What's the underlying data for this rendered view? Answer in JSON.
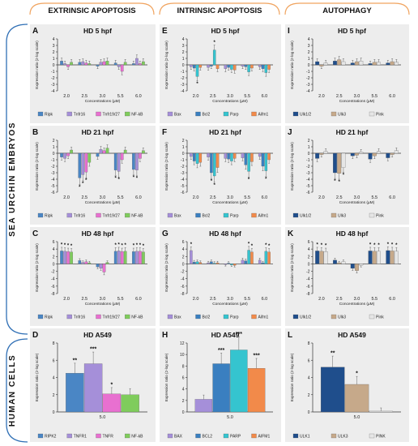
{
  "columns": [
    "EXTRINSIC APOPTOSIS",
    "INTRINSIC APOPTOSIS",
    "AUTOPHAGY"
  ],
  "row_groups": [
    "SEA URCHIN EMBRYOS",
    "HUMAN CELLS"
  ],
  "colors": {
    "header_arc": "#f0a35e",
    "bracket": "#2f6fb5",
    "panel_bg": "#ededed",
    "Ripk": "#4a86c5",
    "Tnfr16": "#a58fd9",
    "Tnfr19/27": "#e870d0",
    "NF-kB": "#7fcc5c",
    "Bax": "#a58fd9",
    "Bcl2": "#3a7fc0",
    "Parp": "#35c4cf",
    "Aifm1": "#f28a4a",
    "Ulk1/2": "#1f4e8c",
    "Ulk3": "#c6a98a",
    "Pink": "#e6e6e6"
  },
  "chart_data": [
    {
      "type": "bar",
      "panel": "A",
      "title": "HD 5 hpf",
      "ylabel": "Expression ratio (2-log scale)",
      "xlabel": "Concentrations (µM)",
      "ylim": [
        -4,
        4
      ],
      "yticks": [
        -4,
        -3,
        -2,
        -1,
        0,
        1,
        2,
        3,
        4
      ],
      "categories": [
        "2.0",
        "2.5",
        "3.0",
        "5.5",
        "6.0"
      ],
      "series": [
        {
          "name": "Ripk",
          "values": [
            0.6,
            0.4,
            -0.2,
            0.3,
            0.2
          ]
        },
        {
          "name": "Tnfr16",
          "values": [
            0.2,
            0.5,
            0.4,
            -0.3,
            1.0
          ]
        },
        {
          "name": "Tnfr19/27",
          "values": [
            -0.3,
            0.3,
            0.5,
            -1.0,
            0.2
          ]
        },
        {
          "name": "NF-kB",
          "values": [
            0.4,
            0.2,
            0.6,
            0.4,
            0.5
          ]
        }
      ],
      "stars": []
    },
    {
      "type": "bar",
      "panel": "B",
      "title": "HD 21 hpf",
      "ylabel": "Expression ratio (2-log scale)",
      "xlabel": "Concentrations (µM)",
      "ylim": [
        -6,
        2
      ],
      "yticks": [
        -6,
        -5,
        -4,
        -3,
        -2,
        -1,
        0,
        1,
        2
      ],
      "categories": [
        "2.0",
        "2.5",
        "3.0",
        "5.5",
        "6.0"
      ],
      "series": [
        {
          "name": "Ripk",
          "values": [
            -0.6,
            -3.8,
            -0.5,
            -2.6,
            -2.5
          ]
        },
        {
          "name": "Tnfr16",
          "values": [
            -0.8,
            -3.3,
            0.6,
            -2.8,
            -2.6
          ]
        },
        {
          "name": "Tnfr19/27",
          "values": [
            -0.4,
            -2.9,
            0.4,
            -1.0,
            -0.8
          ]
        },
        {
          "name": "NF-kB",
          "values": [
            0.5,
            -1.4,
            0.8,
            0.5,
            0.4
          ]
        }
      ],
      "stars": [
        [
          "2.5",
          0
        ],
        [
          "2.5",
          1
        ],
        [
          "2.5",
          2
        ],
        [
          "5.5",
          0
        ],
        [
          "5.5",
          1
        ],
        [
          "6.0",
          0
        ],
        [
          "6.0",
          1
        ]
      ]
    },
    {
      "type": "bar",
      "panel": "C",
      "title": "HD 48 hpf",
      "ylabel": "Expression ratio (2-log scale)",
      "xlabel": "Concentrations (µM)",
      "ylim": [
        -8,
        6
      ],
      "yticks": [
        -8,
        -6,
        -4,
        -2,
        0,
        2,
        4,
        6
      ],
      "categories": [
        "2.0",
        "2.5",
        "3.0",
        "5.5",
        "6.0"
      ],
      "series": [
        {
          "name": "Ripk",
          "values": [
            3.5,
            0.9,
            -0.8,
            3.4,
            3.3
          ]
        },
        {
          "name": "Tnfr16",
          "values": [
            3.4,
            0.4,
            -1.2,
            3.5,
            3.4
          ]
        },
        {
          "name": "Tnfr19/27",
          "values": [
            3.3,
            0.6,
            -2.2,
            3.3,
            3.4
          ]
        },
        {
          "name": "NF-kB",
          "values": [
            3.2,
            0.3,
            0.4,
            3.4,
            3.2
          ]
        }
      ],
      "stars": [
        [
          "2.0",
          0
        ],
        [
          "2.0",
          1
        ],
        [
          "2.0",
          2
        ],
        [
          "2.0",
          3
        ],
        [
          "5.5",
          0
        ],
        [
          "5.5",
          1
        ],
        [
          "5.5",
          2
        ],
        [
          "5.5",
          3
        ],
        [
          "6.0",
          0
        ],
        [
          "6.0",
          1
        ],
        [
          "6.0",
          2
        ],
        [
          "6.0",
          3
        ]
      ]
    },
    {
      "type": "bar",
      "panel": "D",
      "title": "HD A549",
      "ylabel": "Expression ratio (2-log scale)",
      "xlabel": "",
      "ylim": [
        0,
        8
      ],
      "yticks": [
        0,
        2,
        4,
        6,
        8
      ],
      "categories": [
        "5.0"
      ],
      "series": [
        {
          "name": "RIPK2",
          "values": [
            4.5
          ]
        },
        {
          "name": "TNFR1",
          "values": [
            5.6
          ]
        },
        {
          "name": "TNFR",
          "values": [
            2.1
          ]
        },
        {
          "name": "NF-kB",
          "values": [
            2.0
          ]
        }
      ],
      "stars": [
        [
          "5.0",
          0,
          "**"
        ],
        [
          "5.0",
          1,
          "***"
        ],
        [
          "5.0",
          2,
          "*"
        ]
      ]
    },
    {
      "type": "bar",
      "panel": "E",
      "title": "HD 5 hpf",
      "ylabel": "Expression ratio (2-log scale)",
      "xlabel": "Concentrations (µM)",
      "ylim": [
        -4,
        4
      ],
      "yticks": [
        -4,
        -3,
        -2,
        -1,
        0,
        1,
        2,
        3,
        4
      ],
      "categories": [
        "2.0",
        "2.5",
        "3.0",
        "5.5",
        "6.0"
      ],
      "series": [
        {
          "name": "Bax",
          "values": [
            -0.3,
            -0.4,
            -0.6,
            -0.2,
            -0.3
          ]
        },
        {
          "name": "Bcl2",
          "values": [
            -0.5,
            -0.2,
            -0.4,
            -0.3,
            -0.6
          ]
        },
        {
          "name": "Parp",
          "values": [
            -1.8,
            2.3,
            -0.7,
            -1.1,
            -1.2
          ]
        },
        {
          "name": "Aifm1",
          "values": [
            -0.4,
            -0.6,
            -0.8,
            -0.5,
            -0.7
          ]
        }
      ],
      "stars": [
        [
          "2.0",
          2
        ],
        [
          "2.5",
          2
        ]
      ]
    },
    {
      "type": "bar",
      "panel": "F",
      "title": "HD 21 hpf",
      "ylabel": "Expression ratio (2-log scale)",
      "xlabel": "Concentrations (µM)",
      "ylim": [
        -6,
        2
      ],
      "yticks": [
        -6,
        -5,
        -4,
        -3,
        -2,
        -1,
        0,
        1,
        2
      ],
      "categories": [
        "2.0",
        "2.5",
        "3.0",
        "5.5",
        "6.0"
      ],
      "series": [
        {
          "name": "Bax",
          "values": [
            -0.5,
            -0.6,
            -0.8,
            -0.7,
            -0.5
          ]
        },
        {
          "name": "Bcl2",
          "values": [
            -1.2,
            -3.0,
            -0.9,
            -1.8,
            -2.0
          ]
        },
        {
          "name": "Parp",
          "values": [
            -1.6,
            -3.5,
            -1.2,
            -2.8,
            -2.7
          ]
        },
        {
          "name": "Aifm1",
          "values": [
            -1.4,
            -2.2,
            -0.8,
            -1.3,
            -1.0
          ]
        }
      ],
      "stars": [
        [
          "2.5",
          1
        ],
        [
          "2.5",
          2
        ],
        [
          "5.5",
          2
        ],
        [
          "6.0",
          2
        ]
      ]
    },
    {
      "type": "bar",
      "panel": "G",
      "title": "HD 48 hpf",
      "ylabel": "Expression ratio (2-log scale)",
      "xlabel": "Concentrations (µM)",
      "ylim": [
        -8,
        6
      ],
      "yticks": [
        -8,
        -6,
        -4,
        -2,
        0,
        2,
        4,
        6
      ],
      "categories": [
        "2.0",
        "2.5",
        "3.0",
        "5.5",
        "6.0"
      ],
      "series": [
        {
          "name": "Bax",
          "values": [
            3.6,
            0.3,
            -0.2,
            1.0,
            1.0
          ]
        },
        {
          "name": "Bcl2",
          "values": [
            0.5,
            0.6,
            0.2,
            0.8,
            0.3
          ]
        },
        {
          "name": "Parp",
          "values": [
            0.6,
            0.2,
            -0.3,
            3.7,
            3.4
          ]
        },
        {
          "name": "Aifm1",
          "values": [
            0.4,
            0.3,
            -0.4,
            3.2,
            3.2
          ]
        }
      ],
      "stars": [
        [
          "2.0",
          0
        ],
        [
          "5.5",
          2
        ],
        [
          "5.5",
          3
        ],
        [
          "6.0",
          2
        ],
        [
          "6.0",
          3
        ]
      ]
    },
    {
      "type": "bar",
      "panel": "H",
      "title": "HD A549",
      "ylabel": "Expression ratio (2-log scale)",
      "xlabel": "",
      "ylim": [
        0,
        12
      ],
      "yticks": [
        0,
        2,
        4,
        6,
        8,
        10,
        12
      ],
      "categories": [
        "5.0"
      ],
      "series": [
        {
          "name": "BAX",
          "values": [
            2.2
          ]
        },
        {
          "name": "BCL2",
          "values": [
            8.4
          ]
        },
        {
          "name": "PARP",
          "values": [
            10.8
          ]
        },
        {
          "name": "AIFM1",
          "values": [
            7.6
          ]
        }
      ],
      "stars": [
        [
          "5.0",
          1,
          "***"
        ],
        [
          "5.0",
          2,
          "***"
        ],
        [
          "5.0",
          3,
          "***"
        ]
      ]
    },
    {
      "type": "bar",
      "panel": "I",
      "title": "HD 5 hpf",
      "ylabel": "Expression ratio (2-log scale)",
      "xlabel": "Concentrations (µM)",
      "ylim": [
        -4,
        4
      ],
      "yticks": [
        -4,
        -3,
        -2,
        -1,
        0,
        1,
        2,
        3,
        4
      ],
      "categories": [
        "2.0",
        "2.5",
        "3.0",
        "5.5",
        "6.0"
      ],
      "series": [
        {
          "name": "Ulk1/2",
          "values": [
            0.5,
            0.6,
            0.3,
            0.2,
            0.3
          ]
        },
        {
          "name": "Ulk3",
          "values": [
            -0.2,
            0.8,
            0.5,
            0.4,
            0.5
          ]
        },
        {
          "name": "Pink",
          "values": [
            0.3,
            0.5,
            0.6,
            0.4,
            0.4
          ]
        }
      ],
      "stars": []
    },
    {
      "type": "bar",
      "panel": "J",
      "title": "HD 21 hpf",
      "ylabel": "Expression ratio (2-log scale)",
      "xlabel": "Concentrations (µM)",
      "ylim": [
        -6,
        2
      ],
      "yticks": [
        -6,
        -5,
        -4,
        -3,
        -2,
        -1,
        0,
        1,
        2
      ],
      "categories": [
        "2.0",
        "2.5",
        "3.0",
        "5.5",
        "6.0"
      ],
      "series": [
        {
          "name": "Ulk1/2",
          "values": [
            -0.8,
            -3.0,
            -0.4,
            -0.9,
            -0.7
          ]
        },
        {
          "name": "Ulk3",
          "values": [
            -0.2,
            -3.1,
            -0.3,
            -0.4,
            -0.2
          ]
        },
        {
          "name": "Pink",
          "values": [
            0.3,
            -2.2,
            0.2,
            0.3,
            0.4
          ]
        }
      ],
      "stars": [
        [
          "2.5",
          0
        ],
        [
          "2.5",
          1
        ],
        [
          "2.5",
          2
        ]
      ]
    },
    {
      "type": "bar",
      "panel": "K",
      "title": "HD 48 hpf",
      "ylabel": "Expression ratio (2-log scale)",
      "xlabel": "Concentrations (µM)",
      "ylim": [
        -8,
        6
      ],
      "yticks": [
        -8,
        -6,
        -4,
        -2,
        0,
        2,
        4,
        6
      ],
      "categories": [
        "2.0",
        "2.5",
        "3.0",
        "5.5",
        "6.0"
      ],
      "series": [
        {
          "name": "Ulk1/2",
          "values": [
            3.5,
            1.0,
            -1.2,
            3.5,
            3.6
          ]
        },
        {
          "name": "Ulk3",
          "values": [
            3.4,
            0.3,
            -1.8,
            3.4,
            3.5
          ]
        },
        {
          "name": "Pink",
          "values": [
            3.3,
            0.6,
            -0.4,
            3.4,
            3.4
          ]
        }
      ],
      "stars": [
        [
          "2.0",
          0
        ],
        [
          "2.0",
          1
        ],
        [
          "2.0",
          2
        ],
        [
          "5.5",
          0
        ],
        [
          "5.5",
          1
        ],
        [
          "5.5",
          2
        ],
        [
          "6.0",
          0
        ],
        [
          "6.0",
          1
        ],
        [
          "6.0",
          2
        ]
      ]
    },
    {
      "type": "bar",
      "panel": "L",
      "title": "HD A549",
      "ylabel": "Expression ratio (2-log scale)",
      "xlabel": "",
      "ylim": [
        0,
        8
      ],
      "yticks": [
        0,
        2,
        4,
        6,
        8
      ],
      "categories": [
        "5.0"
      ],
      "series": [
        {
          "name": "ULK1",
          "values": [
            5.2
          ]
        },
        {
          "name": "ULK3",
          "values": [
            3.2
          ]
        },
        {
          "name": "PINK",
          "values": [
            0.1
          ]
        }
      ],
      "stars": [
        [
          "5.0",
          0,
          "**"
        ],
        [
          "5.0",
          1,
          "*"
        ]
      ]
    }
  ]
}
